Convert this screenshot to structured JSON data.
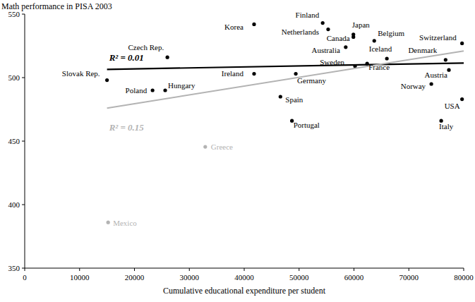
{
  "chart_data": {
    "type": "scatter",
    "title": "Math performance in PISA 2003",
    "x_label": "Cumulative educational expenditure per student",
    "xlim": [
      0,
      80000
    ],
    "xticks": [
      0,
      10000,
      20000,
      30000,
      40000,
      50000,
      60000,
      70000,
      80000
    ],
    "ylim": [
      350,
      550
    ],
    "yticks": [
      350,
      400,
      450,
      500,
      550
    ],
    "grid": false,
    "series": [
      {
        "type": "scatter",
        "marker": "circle",
        "labels": [
          "Slovak Rep.",
          "Czech Rep.",
          "Poland",
          "Hungary",
          "Korea",
          "Ireland",
          "Germany",
          "Spain",
          "Portugal",
          "Greece",
          "Mexico",
          "Finland",
          "Netherlands",
          "Japan",
          "Canada",
          "Australia",
          "Belgium",
          "Iceland",
          "Sweden",
          "France",
          "Switzerland",
          "Denmark",
          "Austria",
          "Norway",
          "USA",
          "Italy"
        ],
        "x": [
          15000,
          26000,
          23300,
          25600,
          41800,
          41800,
          49400,
          46600,
          48700,
          32900,
          15200,
          54300,
          55300,
          59900,
          59900,
          58500,
          63700,
          66000,
          60200,
          62400,
          79700,
          76700,
          77300,
          74100,
          79700,
          75900
        ],
        "values": [
          498,
          516,
          490,
          490,
          542,
          503,
          503,
          485,
          466,
          445.5,
          386,
          543,
          538,
          534,
          532,
          524,
          529,
          515,
          509,
          511,
          527,
          514,
          506,
          495,
          483,
          466
        ],
        "colors": [
          "#000000",
          "#000000",
          "#000000",
          "#000000",
          "#000000",
          "#000000",
          "#000000",
          "#000000",
          "#000000",
          "#b3b3b3",
          "#b3b3b3",
          "#000000",
          "#000000",
          "#000000",
          "#000000",
          "#000000",
          "#000000",
          "#000000",
          "#000000",
          "#000000",
          "#000000",
          "#000000",
          "#000000",
          "#000000",
          "#000000",
          "#000000"
        ]
      },
      {
        "type": "line",
        "name": "R² = 0.01",
        "color": "#000000",
        "line_style": "solid",
        "x": [
          15000,
          80000
        ],
        "values": [
          506.5,
          511.5
        ]
      },
      {
        "type": "line",
        "name": "R² = 0.15",
        "color": "#b3b3b3",
        "line_style": "solid",
        "x": [
          15000,
          80000
        ],
        "values": [
          476,
          521
        ]
      }
    ]
  }
}
